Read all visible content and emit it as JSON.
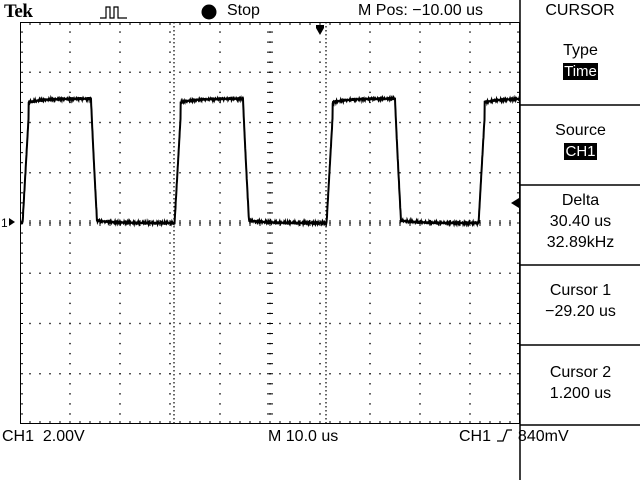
{
  "header": {
    "brand": "Tek",
    "run_state": "Stop",
    "mpos_label": "M Pos:",
    "mpos_value": "−10.00 us"
  },
  "menu": {
    "title": "CURSOR",
    "items": [
      {
        "label": "Type",
        "value": "Time",
        "highlight": true
      },
      {
        "label": "Source",
        "value": "CH1",
        "highlight": true
      },
      {
        "label": "Delta",
        "value": "30.40 us",
        "value2": "32.89kHz",
        "highlight": false
      },
      {
        "label": "Cursor 1",
        "value": "−29.20 us",
        "highlight": false
      },
      {
        "label": "Cursor 2",
        "value": "1.200 us",
        "highlight": false
      }
    ]
  },
  "footer": {
    "ch1_label": "CH1",
    "ch1_scale": "2.00V",
    "timebase_label": "M",
    "timebase": "10.0 us",
    "trig_source": "CH1",
    "trig_level": "840mV"
  },
  "waveform": {
    "channel_marker": "1",
    "high_level_div": 4.95,
    "low_level_div": 0.0,
    "period_us": 30.4,
    "duty": 0.45,
    "cursor1_us": -29.2,
    "cursor2_us": 1.2,
    "time_per_div_us": 10.0,
    "colors": {
      "trace": "#000000",
      "grid": "#000000",
      "background": "#ffffff"
    }
  }
}
